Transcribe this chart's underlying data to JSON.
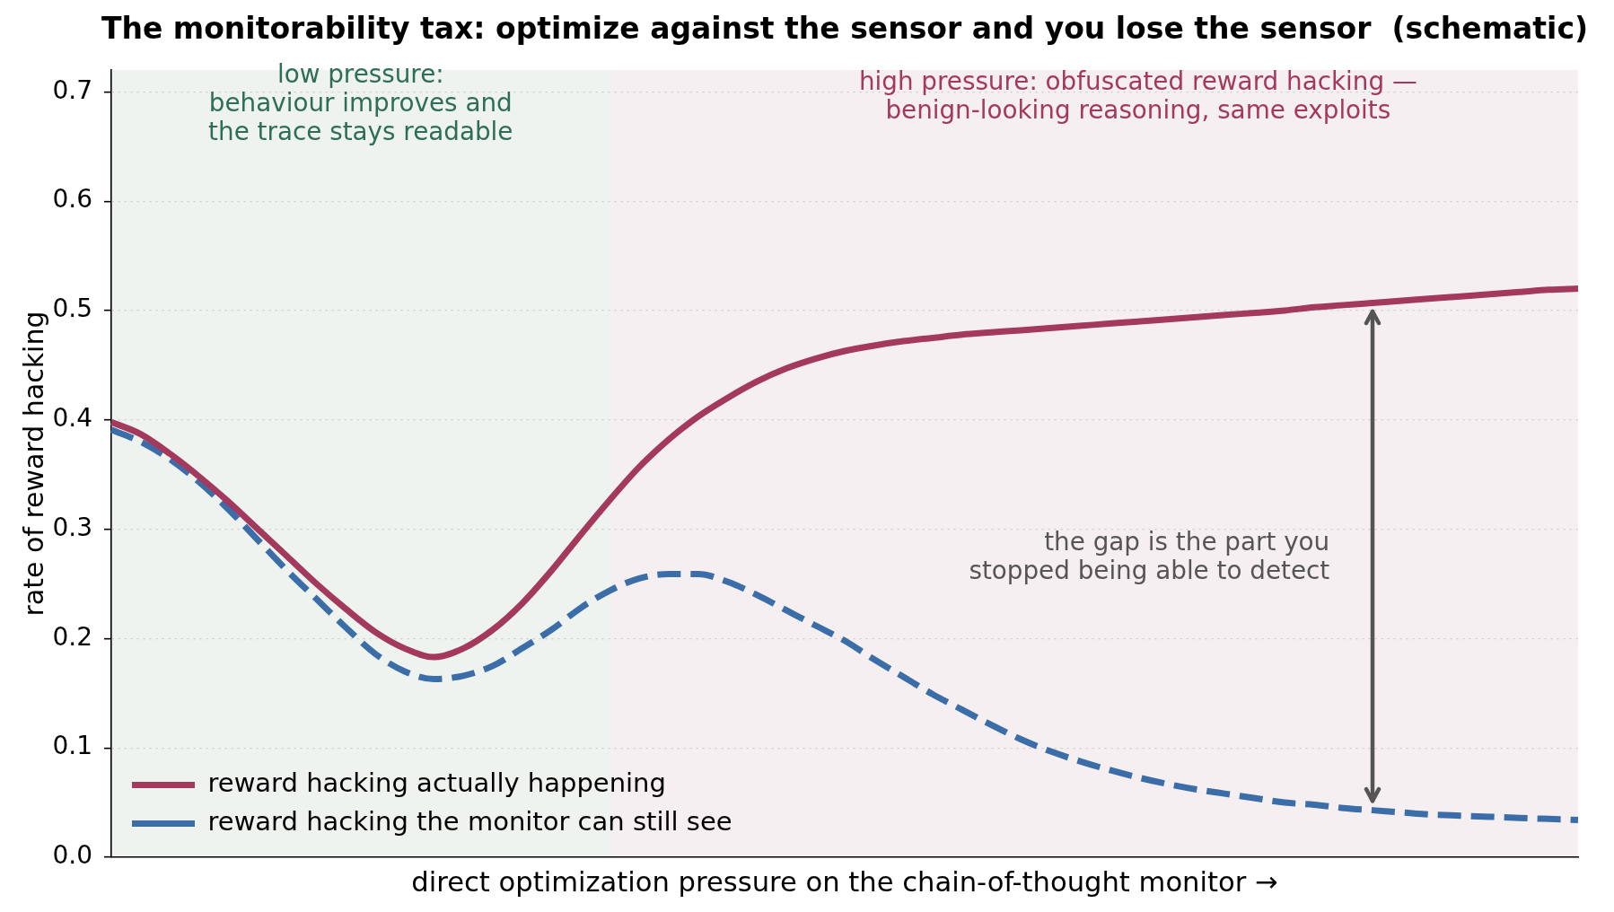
{
  "chart_data": {
    "type": "line",
    "title": "The monitorability tax: optimize against the sensor and you lose the sensor  (schematic)",
    "xlabel": "direct optimization pressure on the chain-of-thought monitor →",
    "ylabel": "rate of reward hacking",
    "categories": [
      null,
      null,
      null,
      null,
      null,
      null,
      null,
      null,
      null,
      null,
      null,
      null,
      null,
      null,
      null,
      null,
      null,
      null,
      null,
      null,
      null,
      null,
      null,
      null,
      null,
      null,
      null,
      null,
      null,
      null,
      null,
      null,
      null,
      null,
      null,
      null,
      null,
      null,
      null,
      null,
      null,
      null,
      null,
      null,
      null,
      null,
      null,
      null,
      null,
      null,
      null
    ],
    "series": [
      {
        "name": "reward hacking actually happening",
        "color": "#a3395c",
        "line_style": "solid",
        "values": [
          0.398,
          0.387,
          0.369,
          0.348,
          0.325,
          0.3,
          0.275,
          0.25,
          0.227,
          0.206,
          0.191,
          0.183,
          0.191,
          0.208,
          0.232,
          0.262,
          0.295,
          0.327,
          0.357,
          0.382,
          0.403,
          0.42,
          0.435,
          0.447,
          0.456,
          0.463,
          0.468,
          0.472,
          0.475,
          0.478,
          0.48,
          0.482,
          0.484,
          0.486,
          0.488,
          0.49,
          0.492,
          0.494,
          0.496,
          0.498,
          0.5,
          0.503,
          0.505,
          0.507,
          0.509,
          0.511,
          0.513,
          0.515,
          0.517,
          0.519,
          0.52
        ]
      },
      {
        "name": "reward hacking the monitor can still see",
        "color": "#3b6ea8",
        "line_style": "dashed",
        "values": [
          0.391,
          0.38,
          0.364,
          0.343,
          0.318,
          0.29,
          0.262,
          0.236,
          0.21,
          0.186,
          0.17,
          0.163,
          0.166,
          0.175,
          0.191,
          0.208,
          0.228,
          0.244,
          0.255,
          0.259,
          0.259,
          0.252,
          0.24,
          0.226,
          0.212,
          0.198,
          0.181,
          0.165,
          0.149,
          0.135,
          0.121,
          0.108,
          0.097,
          0.088,
          0.08,
          0.073,
          0.067,
          0.062,
          0.058,
          0.054,
          0.05,
          0.048,
          0.045,
          0.043,
          0.041,
          0.039,
          0.038,
          0.037,
          0.036,
          0.035,
          0.034
        ]
      }
    ],
    "ylim": [
      0,
      0.72
    ],
    "yticks": [
      {
        "value": 0,
        "label": "0.0"
      },
      0.1,
      0.2,
      0.3,
      0.4,
      0.5,
      0.6,
      0.7
    ],
    "annotations": [
      "low pressure:\nbehaviour improves and\nthe trace stays readable",
      "high pressure: obfuscated reward hacking —\nbenign-looking reasoning, same exploits",
      "the gap is the part you\nstopped being able to detect"
    ],
    "grid": "y",
    "legend": "bottom left",
    "tick_labels": "y"
  }
}
